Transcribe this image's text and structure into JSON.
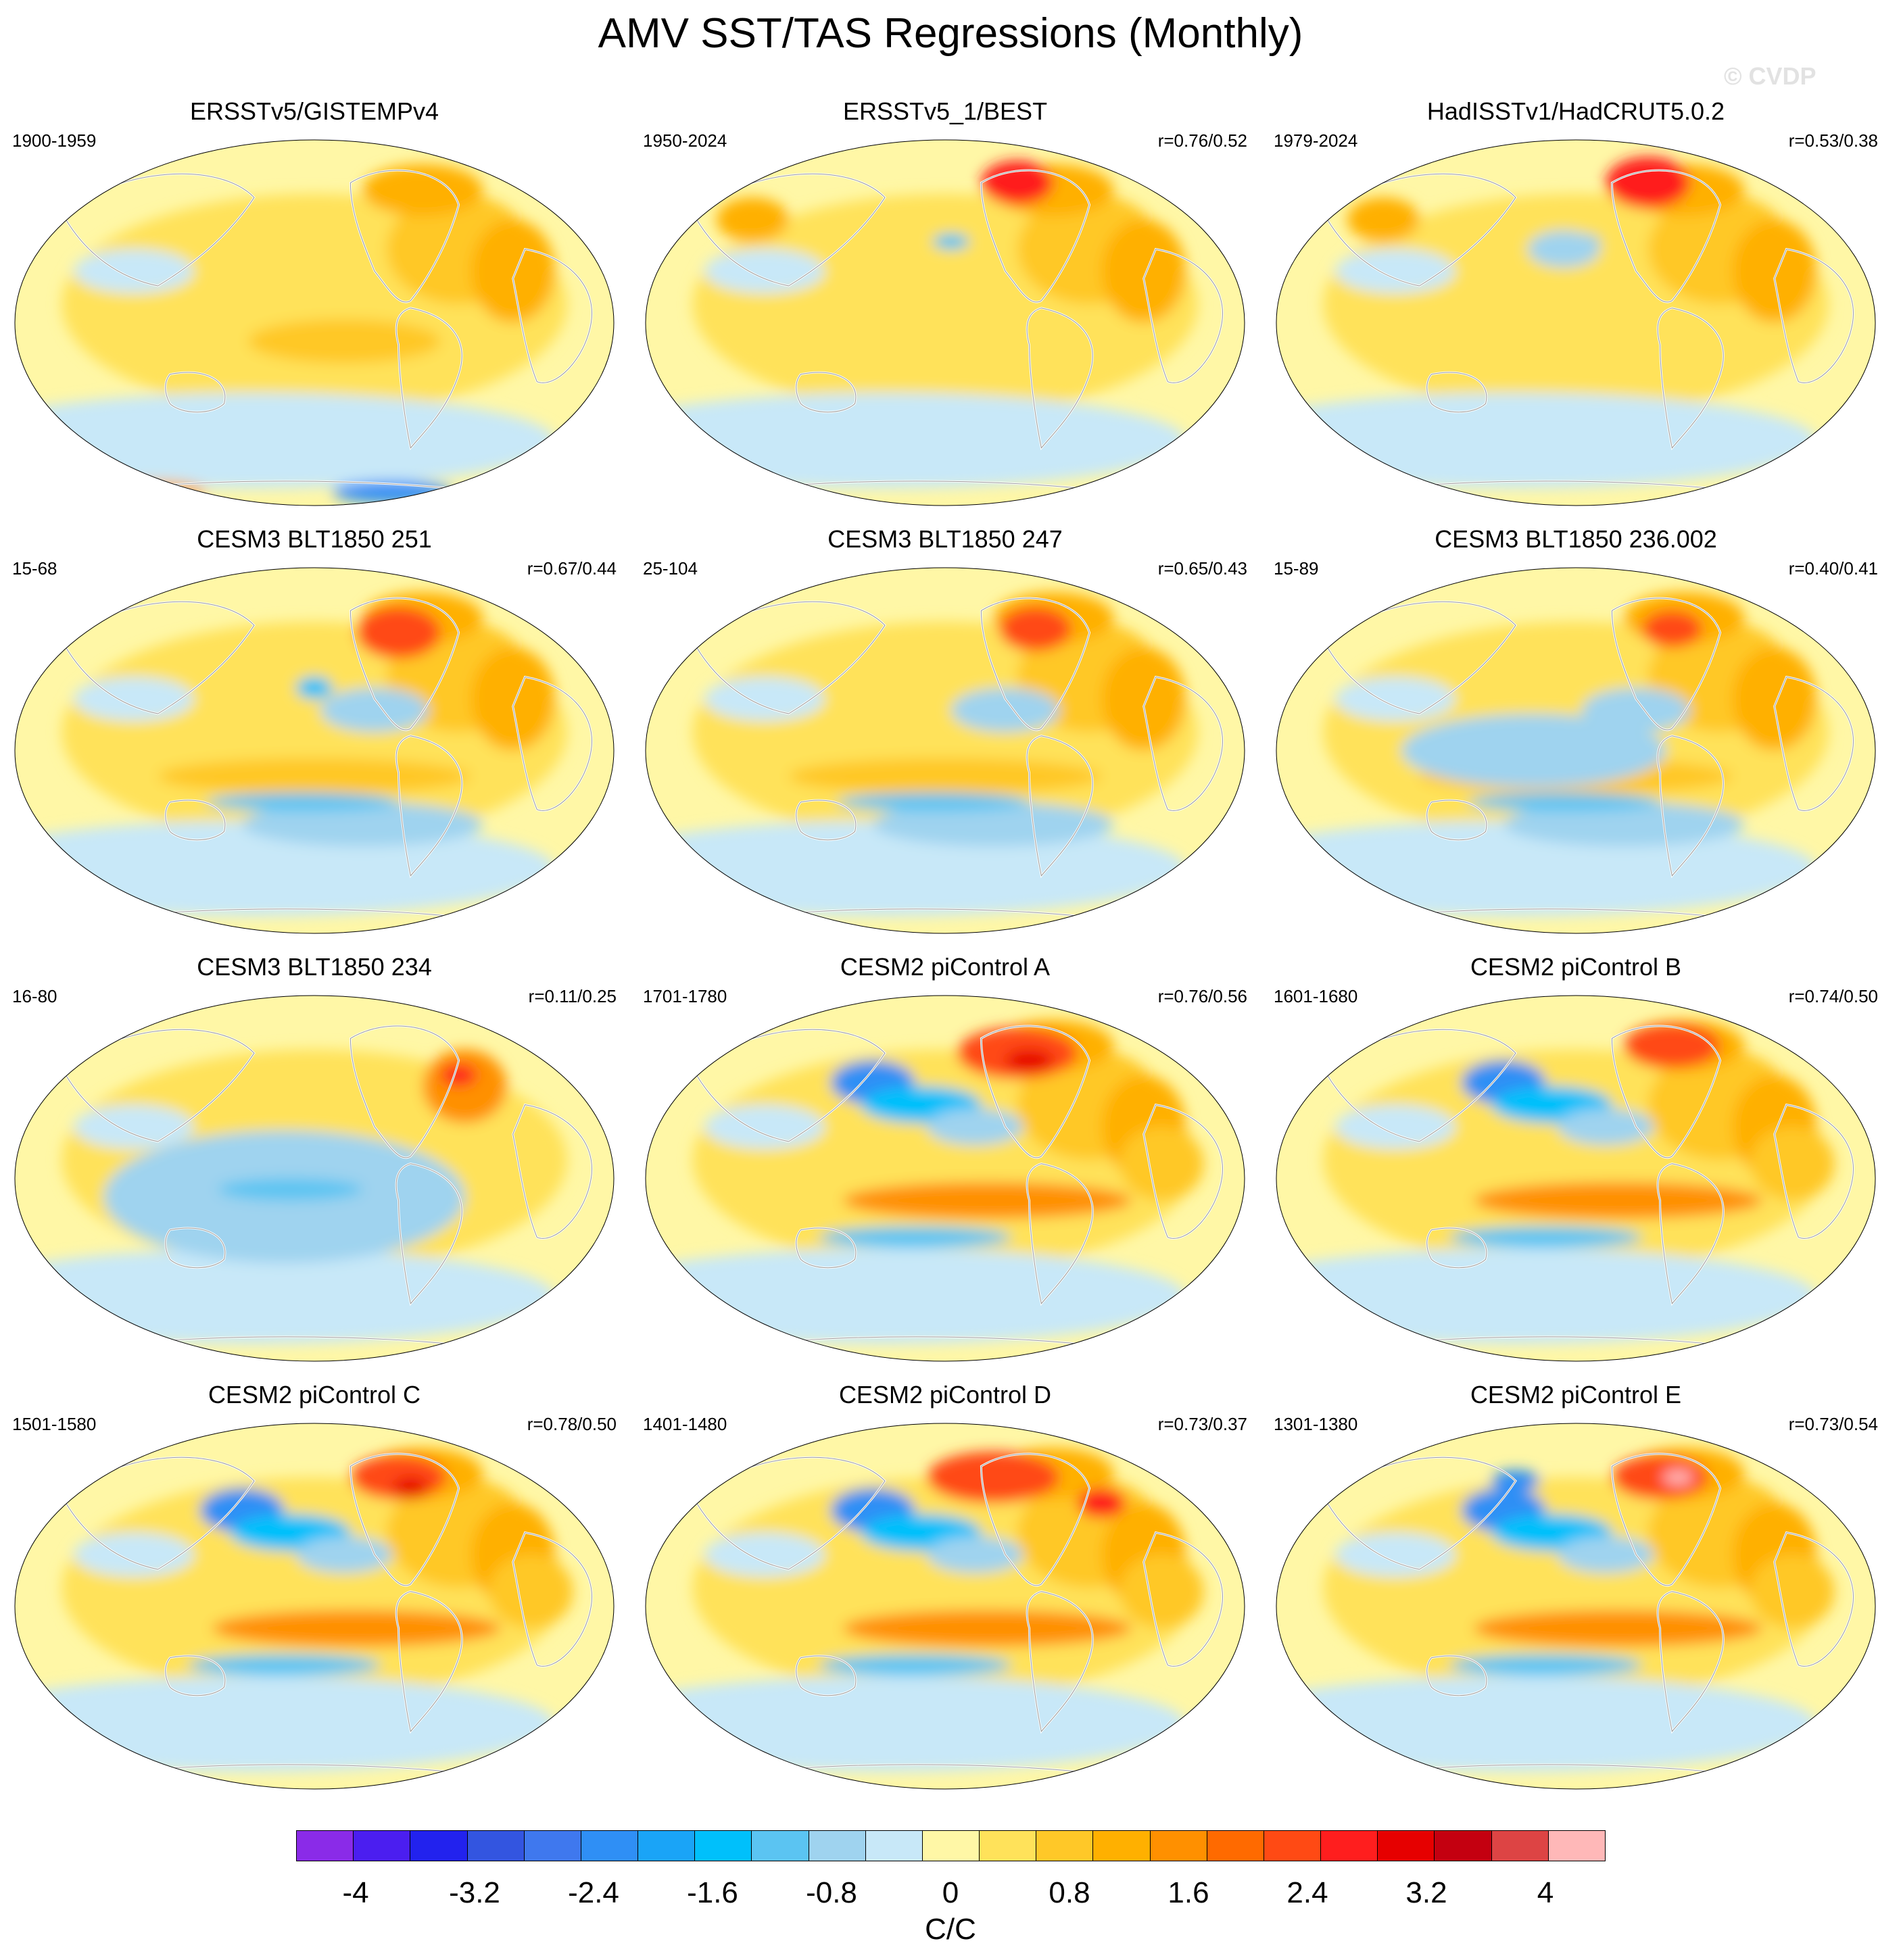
{
  "title": "AMV SST/TAS Regressions (Monthly)",
  "watermark": "© CVDP",
  "panels": [
    {
      "title": "ERSSTv5/GISTEMPv4",
      "years": "1900-1959",
      "corr": "",
      "variant": 0
    },
    {
      "title": "ERSSTv5_1/BEST",
      "years": "1950-2024",
      "corr": "r=0.76/0.52",
      "variant": 1
    },
    {
      "title": "HadISSTv1/HadCRUT5.0.2",
      "years": "1979-2024",
      "corr": "r=0.53/0.38",
      "variant": 2
    },
    {
      "title": "CESM3 BLT1850 251",
      "years": "15-68",
      "corr": "r=0.67/0.44",
      "variant": 3
    },
    {
      "title": "CESM3 BLT1850 247",
      "years": "25-104",
      "corr": "r=0.65/0.43",
      "variant": 4
    },
    {
      "title": "CESM3 BLT1850 236.002",
      "years": "15-89",
      "corr": "r=0.40/0.41",
      "variant": 5
    },
    {
      "title": "CESM3 BLT1850 234",
      "years": "16-80",
      "corr": "r=0.11/0.25",
      "variant": 6
    },
    {
      "title": "CESM2 piControl A",
      "years": "1701-1780",
      "corr": "r=0.76/0.56",
      "variant": 7
    },
    {
      "title": "CESM2 piControl B",
      "years": "1601-1680",
      "corr": "r=0.74/0.50",
      "variant": 8
    },
    {
      "title": "CESM2 piControl C",
      "years": "1501-1580",
      "corr": "r=0.78/0.50",
      "variant": 9
    },
    {
      "title": "CESM2 piControl D",
      "years": "1401-1480",
      "corr": "r=0.73/0.37",
      "variant": 10
    },
    {
      "title": "CESM2 piControl E",
      "years": "1301-1380",
      "corr": "r=0.73/0.54",
      "variant": 11
    }
  ],
  "colorbar": {
    "units": "C/C",
    "min": -4.4,
    "max": 4.4,
    "step": 0.4,
    "colors": [
      "#8a2be8",
      "#4b1ef0",
      "#2222ee",
      "#3355e0",
      "#3f78ee",
      "#2f8ff5",
      "#1aa4f7",
      "#00c0fb",
      "#5bc4f2",
      "#9fd3ef",
      "#c8e8f8",
      "#fff7a6",
      "#ffe25a",
      "#ffc828",
      "#ffb000",
      "#ff9000",
      "#ff6a00",
      "#ff4a14",
      "#ff1e1e",
      "#e60000",
      "#c40010",
      "#dd4444",
      "#ffb8b8"
    ],
    "tick_labels": [
      "-4",
      "-3.2",
      "-2.4",
      "-1.6",
      "-0.8",
      "0",
      "0.8",
      "1.6",
      "2.4",
      "3.2",
      "4"
    ]
  }
}
